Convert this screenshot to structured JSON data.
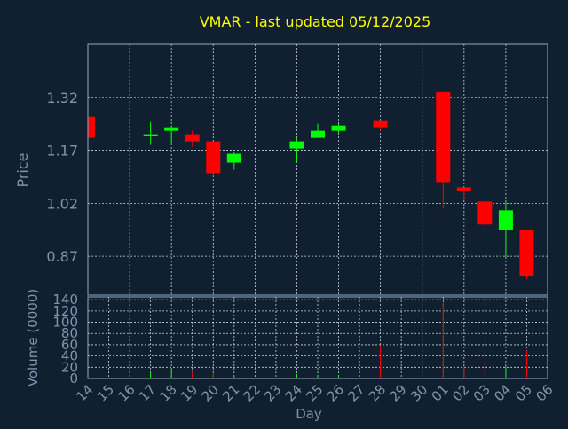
{
  "colors": {
    "background": "#102030",
    "grid": "#c8d2dc",
    "axis_text": "#7f95ad",
    "title_text": "#ffff00",
    "up": "#00ff00",
    "down": "#ff0000",
    "plot_border": "#8fa8c8"
  },
  "chart_data": {
    "type": "candlestick",
    "title": "VMAR - last updated 05/12/2025",
    "xlabel": "Day",
    "ylabel": "Price",
    "ylabel_volume": "Volume (0000)",
    "x_ticks": [
      "14",
      "15",
      "16",
      "17",
      "18",
      "19",
      "20",
      "21",
      "22",
      "23",
      "24",
      "25",
      "26",
      "27",
      "28",
      "29",
      "30",
      "01",
      "02",
      "03",
      "04",
      "05",
      "06"
    ],
    "y_ticks": [
      0.87,
      1.02,
      1.17,
      1.32
    ],
    "y_tick_labels": [
      "0.87",
      "1.02",
      "1.17",
      "1.32"
    ],
    "ylim": [
      0.76,
      1.47
    ],
    "volume_ticks": [
      0,
      20,
      40,
      60,
      80,
      100,
      120,
      140
    ],
    "volume_ylim": [
      0,
      145
    ],
    "grid": true,
    "candles": [
      {
        "day": "14",
        "open": 1.265,
        "high": 1.265,
        "low": 1.205,
        "close": 1.205,
        "volume": 2
      },
      {
        "day": "17",
        "open": 1.215,
        "high": 1.25,
        "low": 1.185,
        "close": 1.215,
        "volume": 10
      },
      {
        "day": "18",
        "open": 1.225,
        "high": 1.24,
        "low": 1.185,
        "close": 1.235,
        "volume": 15
      },
      {
        "day": "19",
        "open": 1.215,
        "high": 1.225,
        "low": 1.18,
        "close": 1.195,
        "volume": 12
      },
      {
        "day": "20",
        "open": 1.195,
        "high": 1.195,
        "low": 1.105,
        "close": 1.105,
        "volume": 10
      },
      {
        "day": "21",
        "open": 1.135,
        "high": 1.165,
        "low": 1.115,
        "close": 1.16,
        "volume": 3
      },
      {
        "day": "24",
        "open": 1.175,
        "high": 1.205,
        "low": 1.135,
        "close": 1.195,
        "volume": 8
      },
      {
        "day": "25",
        "open": 1.205,
        "high": 1.245,
        "low": 1.205,
        "close": 1.225,
        "volume": 4
      },
      {
        "day": "26",
        "open": 1.225,
        "high": 1.245,
        "low": 1.22,
        "close": 1.24,
        "volume": 5
      },
      {
        "day": "28",
        "open": 1.255,
        "high": 1.255,
        "low": 1.225,
        "close": 1.235,
        "volume": 60
      },
      {
        "day": "01",
        "open": 1.335,
        "high": 1.335,
        "low": 1.005,
        "close": 1.08,
        "volume": 135
      },
      {
        "day": "02",
        "open": 1.065,
        "high": 1.065,
        "low": 1.03,
        "close": 1.055,
        "volume": 22
      },
      {
        "day": "03",
        "open": 1.025,
        "high": 1.025,
        "low": 0.935,
        "close": 0.96,
        "volume": 28
      },
      {
        "day": "04",
        "open": 0.945,
        "high": 1.025,
        "low": 0.865,
        "close": 1.0,
        "volume": 22
      },
      {
        "day": "05",
        "open": 0.945,
        "high": 0.945,
        "low": 0.805,
        "close": 0.815,
        "volume": 50
      }
    ]
  }
}
